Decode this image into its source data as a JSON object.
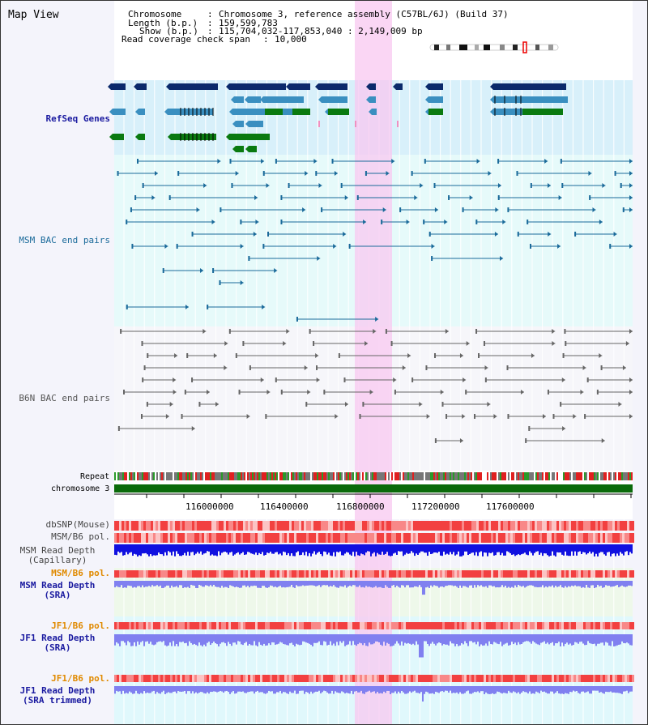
{
  "header": {
    "title": "Map View",
    "chromosome_label": "Chromosome",
    "chromosome_value": "Chromosome 3, reference assembly (C57BL/6J) (Build 37)",
    "length_label": "Length (b.p.)",
    "length_value": "159,599,783",
    "show_label": "Show (b.p.)",
    "show_value": "115,704,032-117,853,040 : 2,149,009 bp",
    "coverage_label": "Read coverage check span",
    "coverage_value": "10,000"
  },
  "tracks": {
    "refseq": "RefSeq Genes",
    "msm_bac": "MSM BAC end pairs",
    "b6n_bac": "B6N BAC end pairs",
    "repeat": "Repeat",
    "chromosome": "chromosome 3",
    "dbsnp": "dbSNP(Mouse)",
    "msm_b6_pol": "MSM/B6 pol.",
    "msm_depth_cap_1": "MSM Read Depth",
    "msm_depth_cap_2": "(Capillary)",
    "msm_b6_pol_2": "MSM/B6 pol.",
    "msm_depth_sra_1": "MSM Read Depth",
    "msm_depth_sra_2": "(SRA)",
    "jf1_b6_pol": "JF1/B6 pol.",
    "jf1_depth_sra_1": "JF1 Read Depth",
    "jf1_depth_sra_2": "(SRA)",
    "jf1_b6_pol_2": "JF1/B6 pol.",
    "jf1_depth_trim_1": "JF1 Read Depth",
    "jf1_depth_trim_2": "(SRA trimmed)"
  },
  "axis": {
    "ticks": [
      "116000000",
      "116400000",
      "116800000",
      "117200000",
      "117600000"
    ]
  },
  "colors": {
    "gene_dark": "#0b2a6b",
    "gene_mid": "#3a8fc0",
    "gene_green": "#0a7a10",
    "msm_line": "#1a6a9a",
    "b6n_line": "#666666",
    "highlight": "#f8c8f0",
    "snp": "#f06060",
    "depth": "#1010e0",
    "depth_light": "#8080f0",
    "label_blue": "#1a1aa0",
    "label_orange": "#e08a00"
  }
}
